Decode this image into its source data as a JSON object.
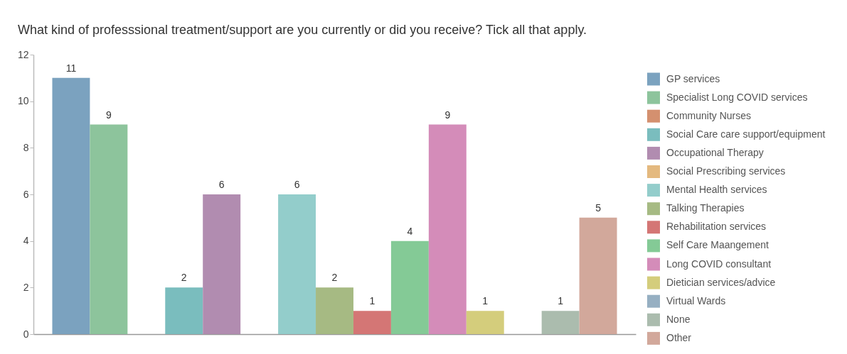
{
  "chart_data": {
    "type": "bar",
    "title": "What kind of professsional treatment/support are you currently or did you receive? Tick all that apply.",
    "categories": [
      null,
      null,
      null,
      null,
      null,
      null,
      null,
      null,
      null,
      null,
      null,
      null,
      null,
      null,
      null
    ],
    "series": [
      {
        "name": "GP services",
        "color": "#7ba2bf",
        "values": [
          11,
          null,
          null,
          null,
          null,
          null,
          null,
          null,
          null,
          null,
          null,
          null,
          null,
          null,
          null
        ],
        "value_labels": [
          "11",
          null,
          null,
          null,
          null,
          null,
          null,
          null,
          null,
          null,
          null,
          null,
          null,
          null,
          null
        ]
      },
      {
        "name": "Specialist Long COVID services",
        "color": "#8dc49c",
        "values": [
          null,
          9,
          null,
          null,
          null,
          null,
          null,
          null,
          null,
          null,
          null,
          null,
          null,
          null,
          null
        ],
        "value_labels": [
          null,
          "9",
          null,
          null,
          null,
          null,
          null,
          null,
          null,
          null,
          null,
          null,
          null,
          null,
          null
        ]
      },
      {
        "name": "Community Nurses",
        "color": "#d4906f",
        "values": [
          null,
          null,
          0,
          null,
          null,
          null,
          null,
          null,
          null,
          null,
          null,
          null,
          null,
          null,
          null
        ]
      },
      {
        "name": "Social Care care support/equipment",
        "color": "#7abdbe",
        "values": [
          null,
          null,
          null,
          2,
          null,
          null,
          null,
          null,
          null,
          null,
          null,
          null,
          null,
          null,
          null
        ],
        "value_labels": [
          null,
          null,
          null,
          "2",
          null,
          null,
          null,
          null,
          null,
          null,
          null,
          null,
          null,
          null,
          null
        ]
      },
      {
        "name": "Occupational Therapy",
        "color": "#b18cb0",
        "values": [
          null,
          null,
          null,
          null,
          6,
          null,
          null,
          null,
          null,
          null,
          null,
          null,
          null,
          null,
          null
        ],
        "value_labels": [
          null,
          null,
          null,
          null,
          "6",
          null,
          null,
          null,
          null,
          null,
          null,
          null,
          null,
          null,
          null
        ]
      },
      {
        "name": "Social Prescribing services",
        "color": "#e4b97f",
        "values": [
          null,
          null,
          null,
          null,
          null,
          0,
          null,
          null,
          null,
          null,
          null,
          null,
          null,
          null,
          null
        ]
      },
      {
        "name": "Mental Health services",
        "color": "#93cdcb",
        "values": [
          null,
          null,
          null,
          null,
          null,
          null,
          6,
          null,
          null,
          null,
          null,
          null,
          null,
          null,
          null
        ],
        "value_labels": [
          null,
          null,
          null,
          null,
          null,
          null,
          "6",
          null,
          null,
          null,
          null,
          null,
          null,
          null,
          null
        ]
      },
      {
        "name": "Talking Therapies",
        "color": "#a6ba83",
        "values": [
          null,
          null,
          null,
          null,
          null,
          null,
          null,
          2,
          null,
          null,
          null,
          null,
          null,
          null,
          null
        ],
        "value_labels": [
          null,
          null,
          null,
          null,
          null,
          null,
          null,
          "2",
          null,
          null,
          null,
          null,
          null,
          null,
          null
        ]
      },
      {
        "name": "Rehabilitation services",
        "color": "#d47675",
        "values": [
          null,
          null,
          null,
          null,
          null,
          null,
          null,
          null,
          1,
          null,
          null,
          null,
          null,
          null,
          null
        ],
        "value_labels": [
          null,
          null,
          null,
          null,
          null,
          null,
          null,
          null,
          "1",
          null,
          null,
          null,
          null,
          null,
          null
        ]
      },
      {
        "name": "Self Care Maangement",
        "color": "#84ca96",
        "values": [
          null,
          null,
          null,
          null,
          null,
          null,
          null,
          null,
          null,
          4,
          null,
          null,
          null,
          null,
          null
        ],
        "value_labels": [
          null,
          null,
          null,
          null,
          null,
          null,
          null,
          null,
          null,
          "4",
          null,
          null,
          null,
          null,
          null
        ]
      },
      {
        "name": "Long COVID consultant",
        "color": "#d48cb9",
        "values": [
          null,
          null,
          null,
          null,
          null,
          null,
          null,
          null,
          null,
          null,
          9,
          null,
          null,
          null,
          null
        ],
        "value_labels": [
          null,
          null,
          null,
          null,
          null,
          null,
          null,
          null,
          null,
          null,
          "9",
          null,
          null,
          null,
          null
        ]
      },
      {
        "name": "Dietician services/advice",
        "color": "#d4cd7c",
        "values": [
          null,
          null,
          null,
          null,
          null,
          null,
          null,
          null,
          null,
          null,
          null,
          1,
          null,
          null,
          null
        ],
        "value_labels": [
          null,
          null,
          null,
          null,
          null,
          null,
          null,
          null,
          null,
          null,
          null,
          "1",
          null,
          null,
          null
        ]
      },
      {
        "name": "Virtual Wards",
        "color": "#96afc2",
        "values": [
          null,
          null,
          null,
          null,
          null,
          null,
          null,
          null,
          null,
          null,
          null,
          null,
          0,
          null,
          null
        ]
      },
      {
        "name": "None",
        "color": "#abbcae",
        "values": [
          null,
          null,
          null,
          null,
          null,
          null,
          null,
          null,
          null,
          null,
          null,
          null,
          null,
          1,
          null
        ],
        "value_labels": [
          null,
          null,
          null,
          null,
          null,
          null,
          null,
          null,
          null,
          null,
          null,
          null,
          null,
          "1",
          null
        ]
      },
      {
        "name": "Other",
        "color": "#d2a89b",
        "values": [
          null,
          null,
          null,
          null,
          null,
          null,
          null,
          null,
          null,
          null,
          null,
          null,
          null,
          null,
          5
        ],
        "value_labels": [
          null,
          null,
          null,
          null,
          null,
          null,
          null,
          null,
          null,
          null,
          null,
          null,
          null,
          null,
          "5"
        ]
      }
    ],
    "ylim": [
      0,
      12
    ],
    "yticks": [
      0,
      2,
      4,
      6,
      8,
      10,
      12
    ],
    "legend": "right",
    "tick_labels": "y"
  }
}
